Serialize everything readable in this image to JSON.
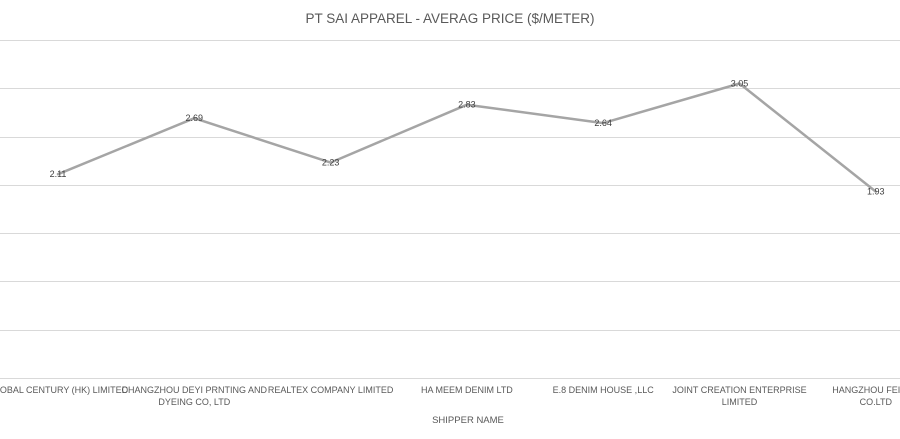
{
  "chart_data": {
    "type": "line",
    "title": "PT SAI APPAREL - AVERAG PRICE ($/METER)",
    "xlabel": "SHIPPER NAME",
    "ylabel": "",
    "categories": [
      [
        "GLOBAL CENTURY (HK) LIMITED"
      ],
      [
        "CHANGZHOU DEYI PRNTING AND",
        "DYEING CO, LTD"
      ],
      [
        "REALTEX COMPANY LIMITED"
      ],
      [
        "HA MEEM DENIM LTD"
      ],
      [
        "E.8 DENIM HOUSE ,LLC"
      ],
      [
        "JOINT CREATION ENTERPRISE",
        "LIMITED"
      ],
      [
        "HANGZHOU FEINAD",
        "CO.LTD"
      ]
    ],
    "series": [
      {
        "values": [
          2.11,
          2.69,
          2.23,
          2.83,
          2.64,
          3.05,
          1.93
        ],
        "labels": [
          "2.11",
          "2.69",
          "2.23",
          "2.83",
          "2.64",
          "3.05",
          "1.93"
        ],
        "color": "#a5a5a5"
      }
    ],
    "ylim": [
      0,
      3.5
    ],
    "grid": true,
    "legend": "none"
  }
}
